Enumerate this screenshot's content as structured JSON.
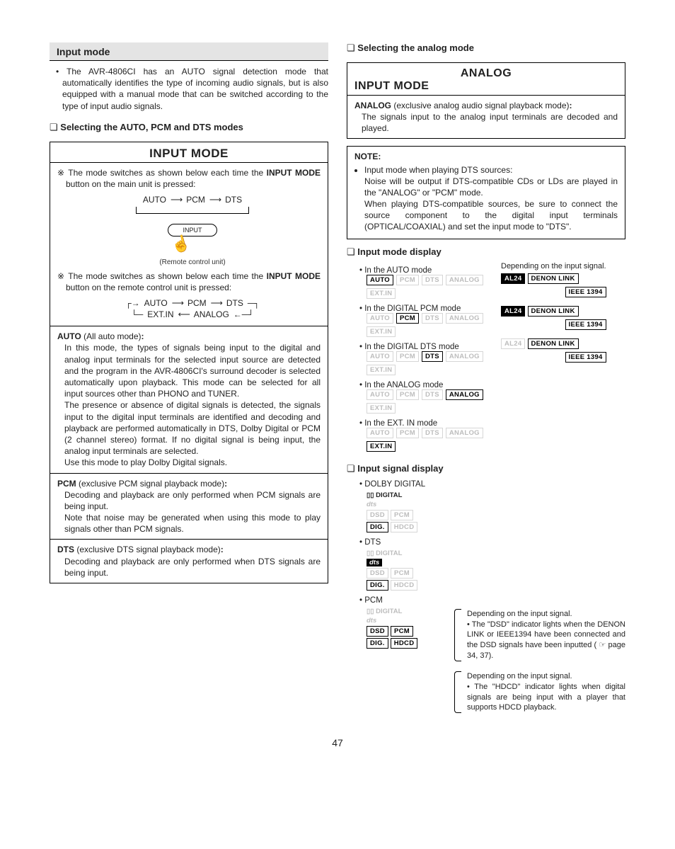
{
  "page_number": "47",
  "colors": {
    "gray_bar_bg": "#e4e4e4",
    "tag_off_text": "#bdbdbd",
    "tag_off_border": "#d6d6d6",
    "tag_on": "#000000",
    "background": "#ffffff"
  },
  "left": {
    "header": "Input mode",
    "intro": "The AVR-4806CI has an AUTO signal detection mode that automatically identifies the type of incoming audio signals, but is also equipped with a manual mode that can be switched according to the type of input audio signals.",
    "sub1": "Selecting the AUTO, PCM and DTS modes",
    "panel_title": "INPUT MODE",
    "star1_pre": "The mode switches as shown below each time the ",
    "star1_bold": "INPUT MODE",
    "star1_post": " button on the main unit is pressed:",
    "seq1": {
      "a": "AUTO",
      "b": "PCM",
      "c": "DTS"
    },
    "remote_label": "INPUT",
    "remote_caption": "(Remote control unit)",
    "star2_pre": "The mode switches as shown below each time the ",
    "star2_bold": "INPUT MODE",
    "star2_post": " button on the remote control unit is pressed:",
    "seq2_top": {
      "a": "AUTO",
      "b": "PCM",
      "c": "DTS"
    },
    "seq2_bot": {
      "a": "EXT.IN",
      "b": "ANALOG"
    },
    "auto_label": "AUTO",
    "auto_paren": "(All auto mode)",
    "auto_colon": ":",
    "auto_body1": "In this mode, the types of signals being input to the digital and analog input terminals for the selected input source are detected and the program in the AVR-4806CI's surround decoder is selected automatically upon playback. This mode can be selected for all input sources other than PHONO and TUNER.",
    "auto_body2": "The presence or absence of digital signals is detected, the signals input to the digital input terminals are identified and decoding and playback are performed automatically in DTS, Dolby Digital or PCM (2 channel stereo) format. If no digital signal is being input, the analog input terminals are selected.",
    "auto_body3": "Use this mode to play Dolby Digital signals.",
    "pcm_label": "PCM",
    "pcm_paren": "(exclusive PCM signal playback mode)",
    "pcm_colon": ":",
    "pcm_body1": "Decoding and playback are only performed when PCM signals are being input.",
    "pcm_body2": "Note that noise may be generated when using this mode to play signals other than PCM signals.",
    "dts_label": "DTS",
    "dts_paren": "(exclusive DTS signal playback mode)",
    "dts_colon": ":",
    "dts_body": "Decoding and playback are only performed when DTS signals are being input."
  },
  "right": {
    "sub1": "Selecting the analog mode",
    "panel_title_top": "ANALOG",
    "panel_title_bot": "INPUT MODE",
    "analog_label": "ANALOG",
    "analog_paren": "(exclusive analog audio signal playback mode)",
    "analog_colon": ":",
    "analog_body": "The signals input to the analog input terminals are decoded and played.",
    "note_title": "NOTE:",
    "note_lead": "Input mode when playing DTS sources:",
    "note_body1": "Noise will be output if DTS-compatible CDs or LDs are played in the \"ANALOG\" or \"PCM\" mode.",
    "note_body2": "When playing DTS-compatible sources, be sure to connect the source component to the digital input terminals (OPTICAL/COAXIAL) and set the input mode to \"DTS\".",
    "sub2": "Input mode display",
    "depending": "Depending on the input signal.",
    "modes": {
      "auto": {
        "label": "In the AUTO mode",
        "tags": [
          "AUTO",
          "PCM",
          "DTS",
          "ANALOG",
          "EXT.IN"
        ],
        "on": [
          "AUTO"
        ]
      },
      "pcm": {
        "label": "In the DIGITAL PCM mode",
        "tags": [
          "AUTO",
          "PCM",
          "DTS",
          "ANALOG",
          "EXT.IN"
        ],
        "on": [
          "PCM"
        ]
      },
      "dts": {
        "label": "In the DIGITAL DTS mode",
        "tags": [
          "AUTO",
          "PCM",
          "DTS",
          "ANALOG",
          "EXT.IN"
        ],
        "on": [
          "DTS"
        ]
      },
      "analog": {
        "label": "In the ANALOG mode",
        "tags": [
          "AUTO",
          "PCM",
          "DTS",
          "ANALOG",
          "EXT.IN"
        ],
        "on": [
          "ANALOG"
        ]
      },
      "extin": {
        "label": "In the EXT. IN mode",
        "tags": [
          "AUTO",
          "PCM",
          "DTS",
          "ANALOG",
          "EXT.IN"
        ],
        "on": [
          "EXT.IN"
        ]
      }
    },
    "right_tags": {
      "al24": "AL24",
      "denon": "DENON LINK",
      "ieee": "IEEE 1394"
    },
    "right_sets": [
      {
        "al24": "inv",
        "denon": "on",
        "ieee": "on"
      },
      {
        "al24": "inv",
        "denon": "on",
        "ieee": "on"
      },
      {
        "al24": "off",
        "denon": "on",
        "ieee": "on"
      }
    ],
    "sub3": "Input signal display",
    "signals": {
      "dolby": {
        "label": "DOLBY DIGITAL",
        "rows": [
          {
            "items": [
              {
                "t": "▯▯ DIGITAL",
                "s": "on",
                "bare": true
              }
            ]
          },
          {
            "items": [
              {
                "t": "dts",
                "s": "off",
                "bare": true,
                "cls": "dts-logo"
              }
            ]
          },
          {
            "items": [
              {
                "t": "DSD",
                "s": "off"
              },
              {
                "t": "PCM",
                "s": "off"
              }
            ]
          },
          {
            "items": [
              {
                "t": "DIG.",
                "s": "on"
              },
              {
                "t": "HDCD",
                "s": "off"
              }
            ]
          }
        ]
      },
      "dts": {
        "label": "DTS",
        "rows": [
          {
            "items": [
              {
                "t": "▯▯ DIGITAL",
                "s": "off",
                "bare": true
              }
            ]
          },
          {
            "items": [
              {
                "t": "dts",
                "s": "inv",
                "bare": true,
                "cls": "dts-logo"
              }
            ]
          },
          {
            "items": [
              {
                "t": "DSD",
                "s": "off"
              },
              {
                "t": "PCM",
                "s": "off"
              }
            ]
          },
          {
            "items": [
              {
                "t": "DIG.",
                "s": "on"
              },
              {
                "t": "HDCD",
                "s": "off"
              }
            ]
          }
        ]
      },
      "pcm": {
        "label": "PCM",
        "rows": [
          {
            "items": [
              {
                "t": "▯▯ DIGITAL",
                "s": "off",
                "bare": true
              }
            ]
          },
          {
            "items": [
              {
                "t": "dts",
                "s": "off",
                "bare": true,
                "cls": "dts-logo"
              }
            ]
          },
          {
            "items": [
              {
                "t": "DSD",
                "s": "on"
              },
              {
                "t": "PCM",
                "s": "on"
              }
            ]
          },
          {
            "items": [
              {
                "t": "DIG.",
                "s": "on"
              },
              {
                "t": "HDCD",
                "s": "on"
              }
            ]
          }
        ]
      }
    },
    "dep1_lead": "Depending on the input signal.",
    "dep1_body": "The \"DSD\" indicator lights when the DENON LINK or IEEE1394 have been connected and the DSD signals have been inputted ( ☞ page 34, 37).",
    "dep2_lead": "Depending on the input signal.",
    "dep2_body": "The \"HDCD\" indicator lights when digital signals are being input with a player that supports HDCD playback."
  }
}
